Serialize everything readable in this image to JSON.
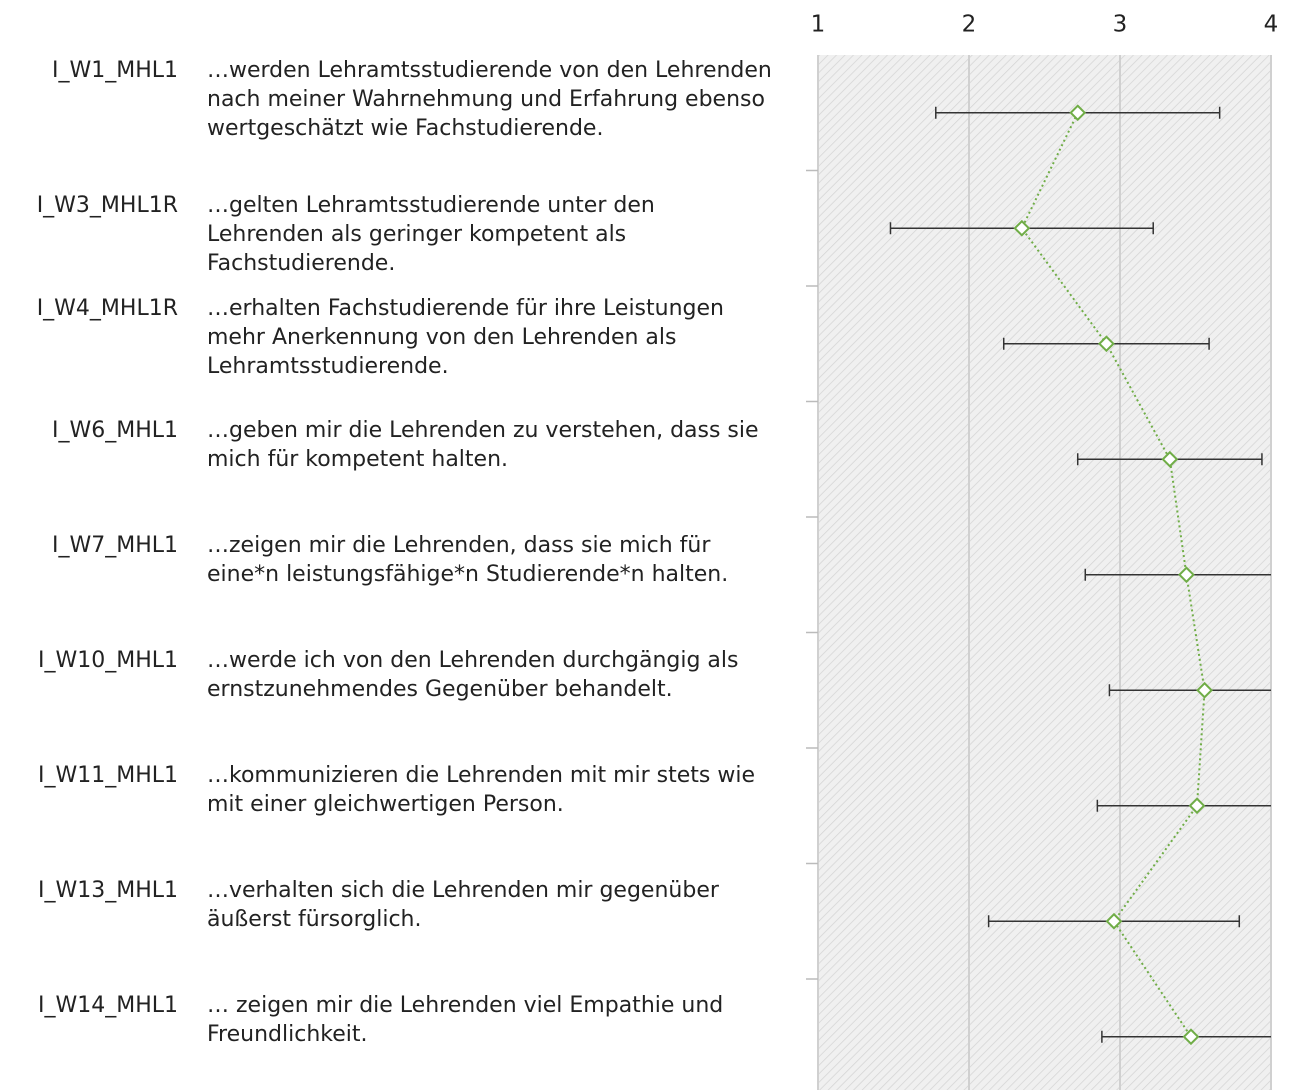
{
  "chart_data": {
    "type": "profile",
    "categories": [
      "I_W1_MHL1",
      "I_W3_MHL1R",
      "I_W4_MHL1R",
      "I_W6_MHL1",
      "I_W7_MHL1",
      "I_W10_MHL1",
      "I_W11_MHL1",
      "I_W13_MHL1",
      "I_W14_MHL1"
    ],
    "items": [
      "…werden Lehramtsstudierende von den Lehrenden nach meiner Wahrnehmung und Erfahrung ebenso wertgeschätzt wie Fachstudierende.",
      "…gelten Lehramtsstudierende unter den Lehrenden als geringer kompetent als Fachstudierende.",
      "…erhalten Fachstudierende für ihre Leistungen mehr Anerkennung von den Lehrenden als Lehramtsstudierende.",
      "…geben mir die Lehrenden zu verstehen, dass sie mich für kompetent halten.",
      "…zeigen mir die Lehrenden, dass sie mich für eine*n leistungsfähige*n Studierende*n halten.",
      "…werde ich von den Lehrenden durchgängig als ernstzunehmendes Gegenüber behandelt.",
      "…kommunizieren die Lehrenden mit mir stets wie mit einer gleichwertigen Person.",
      "…verhalten sich die Lehrenden mir gegenüber äußerst fürsorglich.",
      "… zeigen mir die Lehrenden viel Empathie und Freundlichkeit."
    ],
    "values": [
      2.72,
      2.35,
      2.91,
      3.33,
      3.44,
      3.56,
      3.51,
      2.96,
      3.47
    ],
    "errors": [
      0.94,
      0.87,
      0.68,
      0.61,
      0.67,
      0.63,
      0.66,
      0.83,
      0.59
    ],
    "color": "#70ad47",
    "xlim": [
      1,
      4
    ],
    "xticks": [
      1,
      2,
      3,
      4
    ],
    "grid": true
  }
}
